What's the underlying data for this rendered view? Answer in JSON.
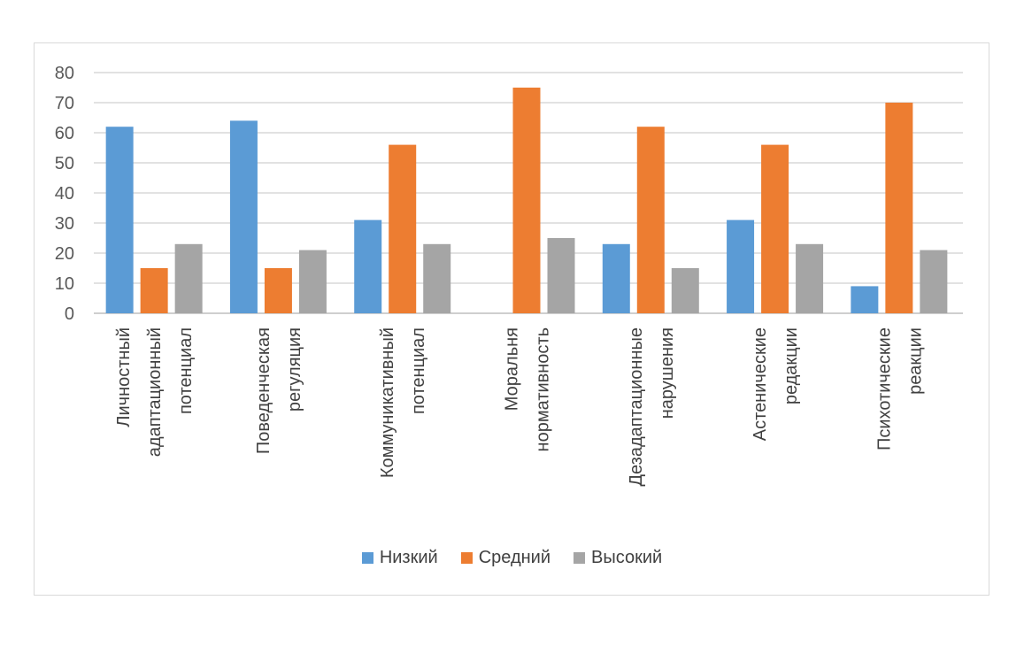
{
  "chart_data": {
    "type": "bar",
    "title": "",
    "xlabel": "",
    "ylabel": "",
    "ylim": [
      0,
      80
    ],
    "yticks": [
      0,
      10,
      20,
      30,
      40,
      50,
      60,
      70,
      80
    ],
    "grid": true,
    "legend_position": "bottom",
    "categories": [
      [
        "Личностный",
        "адаптационный",
        "потенциал"
      ],
      [
        "Поведенческая",
        "регуляция"
      ],
      [
        "Коммуникативный",
        "потенциал"
      ],
      [
        "Моральня",
        "нормативность"
      ],
      [
        "Дезадаптационные",
        "нарушения"
      ],
      [
        "Астенические",
        "редакции"
      ],
      [
        "Психотические",
        "реакции"
      ]
    ],
    "series": [
      {
        "name": "Низкий",
        "color": "#5b9bd5",
        "values": [
          62,
          64,
          31,
          0,
          23,
          31,
          9
        ]
      },
      {
        "name": "Средний",
        "color": "#ed7d31",
        "values": [
          15,
          15,
          56,
          75,
          62,
          56,
          70
        ]
      },
      {
        "name": "Высокий",
        "color": "#a5a5a5",
        "values": [
          23,
          21,
          23,
          25,
          15,
          23,
          21
        ]
      }
    ]
  }
}
